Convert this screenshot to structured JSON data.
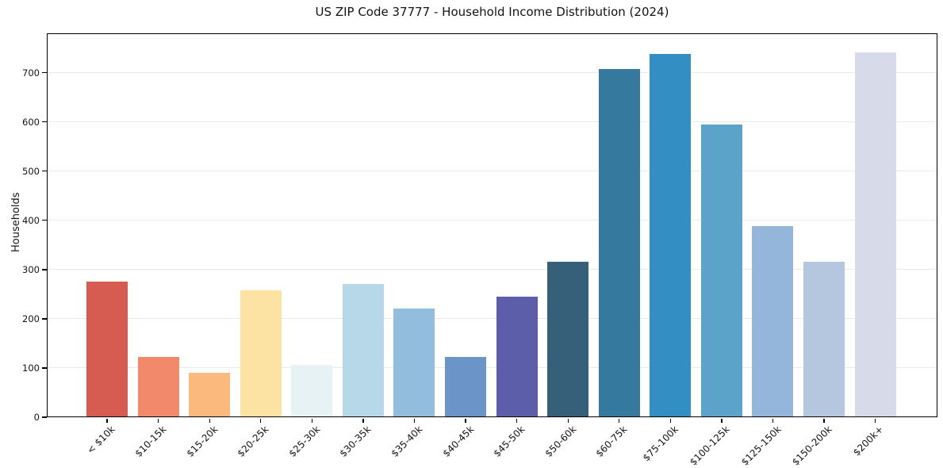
{
  "figure": {
    "background_color": "#ffffff",
    "text_color": "#141414",
    "spine_color": "#000000",
    "grid_color": "#e9e9e9"
  },
  "chart_data": {
    "type": "bar",
    "title": "US ZIP Code 37777 - Household Income Distribution (2024)",
    "xlabel": "",
    "ylabel": "Households",
    "categories": [
      "< $10k",
      "$10-15k",
      "$15-20k",
      "$20-25k",
      "$25-30k",
      "$30-35k",
      "$35-40k",
      "$40-45k",
      "$45-50k",
      "$50-60k",
      "$60-75k",
      "$75-100k",
      "$100-125k",
      "$125-150k",
      "$150-200k",
      "$200k+"
    ],
    "values": [
      276,
      123,
      91,
      258,
      106,
      271,
      220,
      123,
      245,
      316,
      707,
      738,
      595,
      389,
      316,
      741
    ],
    "bar_colors": [
      "#d65c52",
      "#f2896a",
      "#fbb97e",
      "#fde3a3",
      "#e7f2f5",
      "#b6d8e9",
      "#93bddd",
      "#6b94c9",
      "#5c5ea9",
      "#36607a",
      "#35799e",
      "#338fc3",
      "#5ba3c9",
      "#93b6da",
      "#b4c7de",
      "#d7dae9"
    ],
    "ylim": [
      0,
      780
    ],
    "yticks": [
      0,
      100,
      200,
      300,
      400,
      500,
      600,
      700
    ],
    "grid": true,
    "grid_axis": "y",
    "legend": null,
    "x_tick_rotation_deg": 45
  }
}
